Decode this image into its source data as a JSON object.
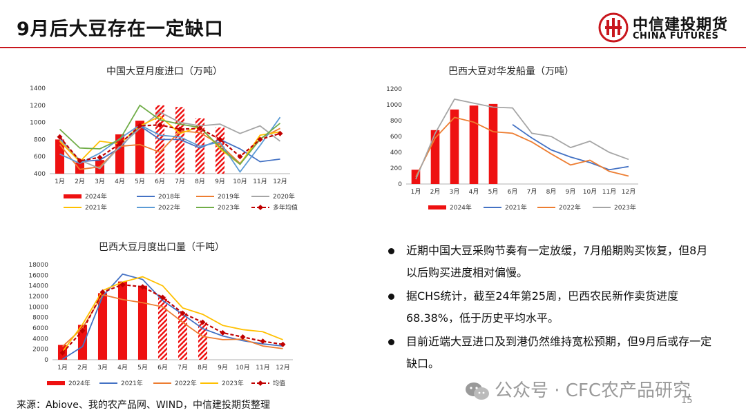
{
  "header": {
    "title": "9月后大豆存在一定缺口"
  },
  "logo": {
    "cn": "中信建投期货",
    "en": "CHINA FUTURES",
    "name": "logo-icon"
  },
  "colors": {
    "accent": "#c8161d"
  },
  "bullets": [
    "近期中国大豆采购节奏有一定放缓，7月船期购买恢复，但8月以后购买进度相对偏慢。",
    "据CHS统计，截至24年第25周，巴西农民新作卖货进度68.38%，低于历史平均水平。",
    "目前近端大豆进口及到港仍然维持宽松预期，但9月后或存一定缺口。"
  ],
  "footer": {
    "source": "来源：Abiove、我的农产品网、WIND，中信建投期货整理",
    "watermark": "公众号 · CFC农产品研究",
    "page": "15"
  },
  "chart_data": [
    {
      "type": "bar",
      "title": "中国大豆月度进口（万吨）",
      "categories": [
        "1月",
        "2月",
        "3月",
        "4月",
        "5月",
        "6月",
        "7月",
        "8月",
        "9月",
        "10月",
        "11月",
        "12月"
      ],
      "ylim": [
        400,
        1400
      ],
      "yticks": [
        400,
        600,
        800,
        1000,
        1200,
        1400
      ],
      "bars": {
        "name": "2024年",
        "values": [
          800,
          530,
          560,
          860,
          1020,
          1200,
          1180,
          1050,
          940
        ],
        "hatched_from_index": 5
      },
      "series": [
        {
          "name": "2018年",
          "color": "#4472c4",
          "values": [
            820,
            540,
            560,
            700,
            960,
            800,
            800,
            700,
            800,
            690,
            540,
            570
          ]
        },
        {
          "name": "2019年",
          "color": "#ed7d31",
          "values": [
            740,
            450,
            480,
            720,
            740,
            650,
            900,
            880,
            740,
            520,
            810,
            930
          ]
        },
        {
          "name": "2020年",
          "color": "#a5a5a5",
          "values": [
            800,
            560,
            460,
            720,
            930,
            1120,
            1000,
            960,
            980,
            870,
            960,
            780
          ]
        },
        {
          "name": "2021年",
          "color": "#ffc000",
          "values": [
            780,
            540,
            780,
            750,
            960,
            1070,
            870,
            950,
            690,
            510,
            850,
            890
          ]
        },
        {
          "name": "2022年",
          "color": "#5b9bd5",
          "values": [
            630,
            520,
            640,
            810,
            970,
            850,
            830,
            720,
            770,
            420,
            730,
            1060
          ]
        },
        {
          "name": "2023年",
          "color": "#70ad47",
          "values": [
            920,
            700,
            690,
            800,
            1200,
            1030,
            980,
            940,
            710,
            510,
            800,
            990
          ]
        },
        {
          "name": "多年均值",
          "color": "#c00000",
          "dashed": true,
          "marker": true,
          "values": [
            830,
            550,
            590,
            750,
            960,
            970,
            920,
            930,
            800,
            600,
            800,
            870
          ]
        }
      ]
    },
    {
      "type": "bar",
      "title": "巴西大豆对华发船量（万吨）",
      "categories": [
        "1月",
        "2月",
        "3月",
        "4月",
        "5月",
        "6月",
        "7月",
        "8月",
        "9月",
        "10月",
        "11月",
        "12月"
      ],
      "ylim": [
        0,
        1200
      ],
      "yticks": [
        0,
        200,
        400,
        600,
        800,
        1000,
        1200
      ],
      "bars": {
        "name": "2024年",
        "values": [
          180,
          680,
          940,
          990,
          1010
        ]
      },
      "series": [
        {
          "name": "2021年",
          "color": "#4472c4",
          "values": [
            null,
            null,
            null,
            null,
            null,
            750,
            580,
            430,
            340,
            270,
            180,
            220
          ]
        },
        {
          "name": "2022年",
          "color": "#ed7d31",
          "values": [
            90,
            580,
            840,
            780,
            660,
            640,
            530,
            380,
            240,
            300,
            160,
            100
          ]
        },
        {
          "name": "2023年",
          "color": "#a5a5a5",
          "values": [
            60,
            640,
            1070,
            1020,
            970,
            960,
            640,
            600,
            460,
            540,
            400,
            310
          ]
        }
      ]
    },
    {
      "type": "bar",
      "title": "巴西大豆月度出口量（千吨）",
      "categories": [
        "1月",
        "2月",
        "3月",
        "4月",
        "5月",
        "6月",
        "7月",
        "8月",
        "9月",
        "10月",
        "11月",
        "12月"
      ],
      "ylim": [
        0,
        18000
      ],
      "yticks": [
        0,
        2000,
        4000,
        6000,
        8000,
        10000,
        12000,
        14000,
        16000,
        18000
      ],
      "bars": {
        "name": "2024年",
        "values": [
          2800,
          6600,
          12600,
          14800,
          14000,
          11900,
          9000,
          7200
        ],
        "hatched_from_index": 5
      },
      "series": [
        {
          "name": "2021年",
          "color": "#4472c4",
          "values": [
            100,
            2500,
            12000,
            16200,
            15200,
            11200,
            8600,
            5900,
            4500,
            3600,
            3000,
            2600
          ]
        },
        {
          "name": "2022年",
          "color": "#ed7d31",
          "values": [
            2500,
            6000,
            12300,
            11400,
            10800,
            10000,
            7100,
            4400,
            3800,
            3900,
            2600,
            2100
          ]
        },
        {
          "name": "2023年",
          "color": "#ffc000",
          "values": [
            1500,
            6700,
            13100,
            14700,
            15700,
            14000,
            9800,
            8600,
            6500,
            5700,
            5300,
            3800
          ]
        },
        {
          "name": "均值",
          "color": "#c00000",
          "dashed": true,
          "marker": true,
          "values": [
            1300,
            5500,
            12800,
            14200,
            13800,
            11800,
            8800,
            7100,
            5100,
            4300,
            3500,
            2900
          ]
        }
      ]
    }
  ]
}
